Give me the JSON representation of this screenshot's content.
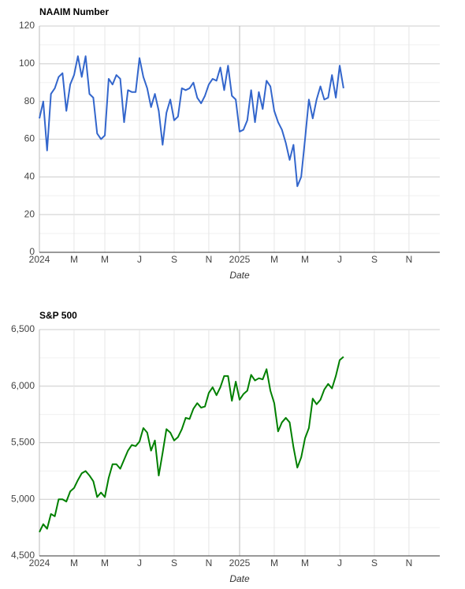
{
  "chart_data": [
    {
      "type": "line",
      "title": "NAAIM Number",
      "xlabel": "Date",
      "categories": [
        "2024",
        null,
        null,
        null,
        null,
        null,
        null,
        null,
        null,
        "M",
        null,
        null,
        null,
        null,
        null,
        null,
        null,
        "M",
        null,
        null,
        null,
        null,
        null,
        null,
        null,
        null,
        "J",
        null,
        null,
        null,
        null,
        null,
        null,
        null,
        null,
        "S",
        null,
        null,
        null,
        null,
        null,
        null,
        null,
        null,
        "N",
        null,
        null,
        null,
        null,
        null,
        null,
        null,
        "2025",
        null,
        null,
        null,
        null,
        null,
        null,
        null,
        null,
        "M",
        null,
        null,
        null,
        null,
        null,
        null,
        null,
        "M",
        null,
        null,
        null,
        null,
        null,
        null,
        null,
        null,
        "J",
        null,
        null,
        null,
        null,
        null,
        null,
        null,
        null,
        "S",
        null,
        null,
        null,
        null,
        null,
        null,
        null,
        null,
        "N",
        null,
        null,
        null,
        null,
        null,
        null,
        null
      ],
      "series": [
        {
          "name": "NAAIM Number",
          "color": "#3366cc",
          "values": [
            71,
            80,
            54,
            84,
            87,
            93,
            95,
            75,
            89,
            94,
            104,
            93,
            104,
            84,
            82,
            63,
            60,
            62,
            92,
            89,
            94,
            92,
            69,
            86,
            85,
            85,
            103,
            93,
            87,
            77,
            84,
            75,
            57,
            74,
            81,
            70,
            72,
            87,
            86,
            87,
            90,
            82,
            79,
            83,
            89,
            92,
            91,
            98,
            86,
            99,
            83,
            81,
            64,
            65,
            70,
            86,
            69,
            85,
            76,
            91,
            88,
            75,
            69,
            65,
            58,
            49,
            57,
            35,
            40,
            60,
            81,
            71,
            81,
            88,
            81,
            82,
            94,
            82,
            99,
            87,
            null,
            null,
            null,
            null,
            null,
            null,
            null,
            null,
            null,
            null,
            null,
            null,
            null,
            null,
            null,
            null,
            null,
            null,
            null,
            null,
            null,
            null,
            null,
            null
          ]
        }
      ],
      "ylim": [
        0,
        120
      ],
      "yticks": [
        0,
        20,
        40,
        60,
        80,
        100,
        120
      ],
      "grid": true
    },
    {
      "type": "line",
      "title": "S&P 500",
      "xlabel": "Date",
      "categories": [
        "2024",
        null,
        null,
        null,
        null,
        null,
        null,
        null,
        null,
        "M",
        null,
        null,
        null,
        null,
        null,
        null,
        null,
        "M",
        null,
        null,
        null,
        null,
        null,
        null,
        null,
        null,
        "J",
        null,
        null,
        null,
        null,
        null,
        null,
        null,
        null,
        "S",
        null,
        null,
        null,
        null,
        null,
        null,
        null,
        null,
        "N",
        null,
        null,
        null,
        null,
        null,
        null,
        null,
        "2025",
        null,
        null,
        null,
        null,
        null,
        null,
        null,
        null,
        "M",
        null,
        null,
        null,
        null,
        null,
        null,
        null,
        "M",
        null,
        null,
        null,
        null,
        null,
        null,
        null,
        null,
        "J",
        null,
        null,
        null,
        null,
        null,
        null,
        null,
        null,
        "S",
        null,
        null,
        null,
        null,
        null,
        null,
        null,
        null,
        "N",
        null,
        null,
        null,
        null,
        null,
        null,
        null
      ],
      "series": [
        {
          "name": "S&P 500",
          "color": "#008000",
          "values": [
            4710,
            4780,
            4740,
            4870,
            4850,
            5000,
            5000,
            4980,
            5070,
            5100,
            5170,
            5230,
            5250,
            5210,
            5160,
            5020,
            5060,
            5020,
            5190,
            5310,
            5310,
            5270,
            5350,
            5430,
            5480,
            5470,
            5510,
            5630,
            5590,
            5430,
            5520,
            5210,
            5410,
            5620,
            5590,
            5520,
            5550,
            5620,
            5720,
            5710,
            5800,
            5850,
            5810,
            5820,
            5940,
            5990,
            5920,
            5990,
            6090,
            6090,
            5870,
            6040,
            5880,
            5930,
            5960,
            6100,
            6050,
            6070,
            6060,
            6150,
            5960,
            5850,
            5600,
            5680,
            5720,
            5680,
            5460,
            5280,
            5370,
            5540,
            5630,
            5890,
            5840,
            5880,
            5970,
            6020,
            5980,
            6090,
            6230,
            6260,
            null,
            null,
            null,
            null,
            null,
            null,
            null,
            null,
            null,
            null,
            null,
            null,
            null,
            null,
            null,
            null,
            null,
            null,
            null,
            null,
            null,
            null,
            null,
            null
          ]
        }
      ],
      "ylim": [
        4500,
        6500
      ],
      "yticks": [
        {
          "value": 4500,
          "label": "4,500"
        },
        {
          "value": 5000,
          "label": "5,000"
        },
        {
          "value": 5500,
          "label": "5,500"
        },
        {
          "value": 6000,
          "label": "6,000"
        },
        {
          "value": 6500,
          "label": "6,500"
        }
      ],
      "grid": true
    }
  ]
}
